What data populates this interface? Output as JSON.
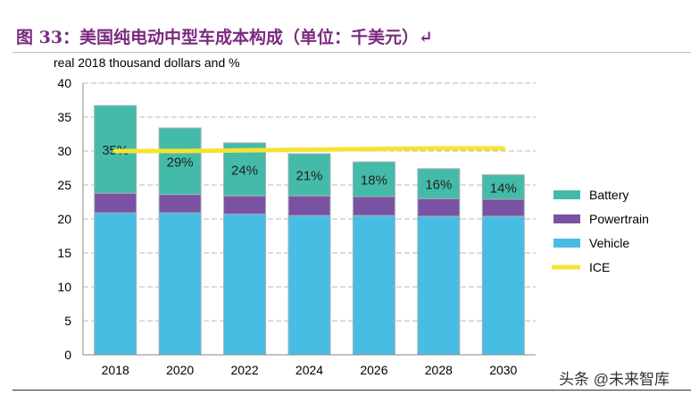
{
  "title": "图 33：美国纯电动中型车成本构成（单位：千美元）↵",
  "watermark": "头条 @未来智库",
  "chart_data": {
    "type": "bar",
    "stacked": true,
    "ylabel": "real 2018 thousand dollars and %",
    "ylim": [
      0,
      40
    ],
    "yticks": [
      0,
      5,
      10,
      15,
      20,
      25,
      30,
      35,
      40
    ],
    "categories": [
      "2018",
      "2020",
      "2022",
      "2024",
      "2026",
      "2028",
      "2030"
    ],
    "grid": true,
    "legend": "right",
    "series": [
      {
        "name": "Vehicle",
        "color": "#47bde4",
        "values": [
          20.9,
          20.9,
          20.7,
          20.5,
          20.5,
          20.4,
          20.4
        ]
      },
      {
        "name": "Powertrain",
        "color": "#7a52a3",
        "values": [
          2.9,
          2.7,
          2.7,
          2.9,
          2.8,
          2.6,
          2.5
        ]
      },
      {
        "name": "Battery",
        "color": "#44bba8",
        "values": [
          12.9,
          9.8,
          7.8,
          6.2,
          5.1,
          4.4,
          3.6
        ],
        "labels": [
          "35%",
          "29%",
          "24%",
          "21%",
          "18%",
          "16%",
          "14%"
        ]
      },
      {
        "name": "ICE",
        "type": "line",
        "color": "#f7e233",
        "values": [
          30.0,
          30.0,
          30.1,
          30.2,
          30.3,
          30.4,
          30.4
        ]
      }
    ],
    "legend_order": [
      "Battery",
      "Powertrain",
      "Vehicle",
      "ICE"
    ]
  }
}
